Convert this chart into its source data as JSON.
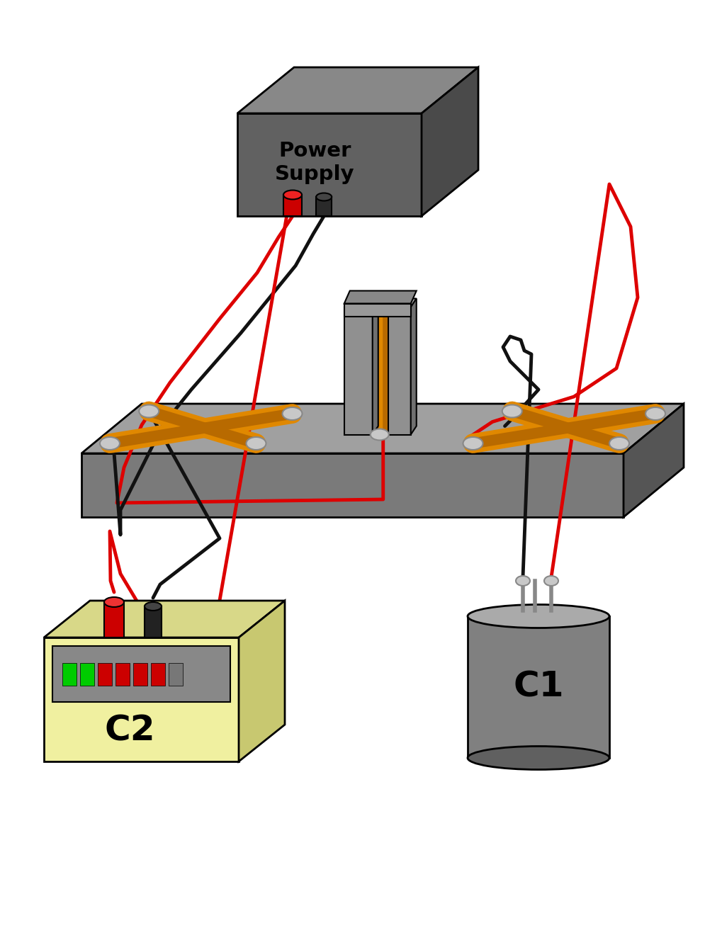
{
  "bg_color": "#ffffff",
  "ps_face": "#616161",
  "ps_top": "#888888",
  "ps_side": "#4a4a4a",
  "ps_label": "Power\nSupply",
  "bb_face": "#7a7a7a",
  "bb_top": "#a0a0a0",
  "bb_side": "#555555",
  "orange": "#e08800",
  "orange_dark": "#b86a00",
  "c1_body": "#808080",
  "c1_top_color": "#aaaaaa",
  "c1_bottom_color": "#606060",
  "c1_label": "C1",
  "c2_face": "#f0f0a0",
  "c2_top": "#d8d888",
  "c2_side": "#c8c870",
  "c2_label": "C2",
  "wire_red": "#dd0000",
  "wire_black": "#111111",
  "wire_lw": 3.5,
  "panel_color": "#888888",
  "led_colors": [
    "#00cc00",
    "#00cc00",
    "#cc0000",
    "#cc0000",
    "#cc0000",
    "#cc0000",
    "#777777"
  ],
  "gray_plug": "#c8c8c8",
  "plug_outline": "#888888"
}
